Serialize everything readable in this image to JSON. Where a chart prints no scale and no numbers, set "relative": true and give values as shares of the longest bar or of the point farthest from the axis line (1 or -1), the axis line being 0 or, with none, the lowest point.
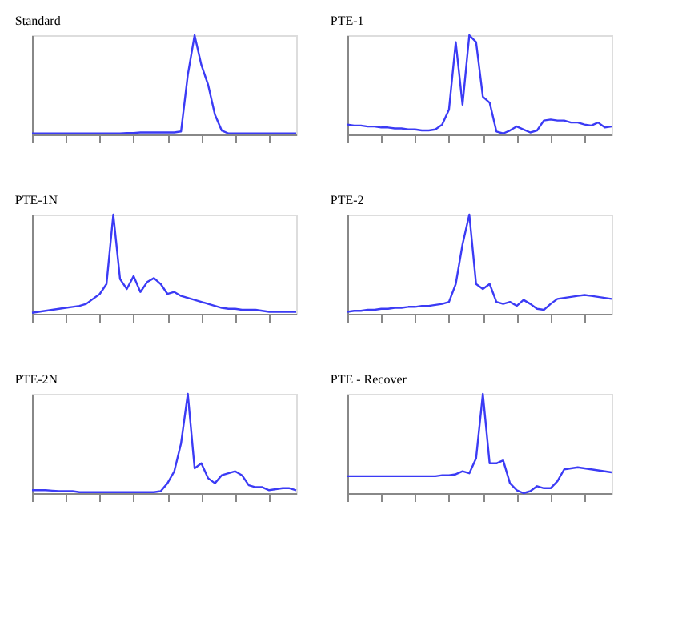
{
  "chart_data": [
    {
      "type": "line",
      "title": "Standard",
      "relative": true,
      "tick_labels": false,
      "grid": false,
      "categories": [
        null,
        null,
        null,
        null,
        null,
        null,
        null,
        null,
        null,
        null,
        null,
        null,
        null,
        null,
        null,
        null,
        null,
        null,
        null,
        null,
        null,
        null,
        null,
        null,
        null,
        null,
        null,
        null,
        null,
        null,
        null,
        null,
        null,
        null,
        null,
        null,
        null,
        null,
        null,
        null
      ],
      "series": [
        {
          "color": "#3b3bf5",
          "values": [
            0.01,
            0.01,
            0.01,
            0.01,
            0.01,
            0.01,
            0.01,
            0.01,
            0.01,
            0.01,
            0.01,
            0.01,
            0.01,
            0.01,
            0.015,
            0.015,
            0.02,
            0.02,
            0.02,
            0.02,
            0.02,
            0.02,
            0.03,
            0.6,
            1.0,
            0.7,
            0.5,
            0.2,
            0.04,
            0.01,
            0.01,
            0.01,
            0.01,
            0.01,
            0.01,
            0.01,
            0.01,
            0.01,
            0.01,
            0.01
          ]
        }
      ]
    },
    {
      "type": "line",
      "title": "PTE-1",
      "relative": true,
      "tick_labels": false,
      "grid": false,
      "categories": [
        null,
        null,
        null,
        null,
        null,
        null,
        null,
        null,
        null,
        null,
        null,
        null,
        null,
        null,
        null,
        null,
        null,
        null,
        null,
        null,
        null,
        null,
        null,
        null,
        null,
        null,
        null,
        null,
        null,
        null,
        null,
        null,
        null,
        null,
        null,
        null,
        null,
        null,
        null,
        null
      ],
      "series": [
        {
          "color": "#3b3bf5",
          "values": [
            0.1,
            0.09,
            0.09,
            0.08,
            0.08,
            0.07,
            0.07,
            0.06,
            0.06,
            0.05,
            0.05,
            0.04,
            0.04,
            0.05,
            0.1,
            0.25,
            0.93,
            0.3,
            1.0,
            0.93,
            0.38,
            0.32,
            0.03,
            0.01,
            0.04,
            0.08,
            0.05,
            0.02,
            0.04,
            0.14,
            0.15,
            0.14,
            0.14,
            0.12,
            0.12,
            0.1,
            0.09,
            0.12,
            0.07,
            0.08
          ]
        }
      ]
    },
    {
      "type": "line",
      "title": "PTE-1N",
      "relative": true,
      "tick_labels": false,
      "grid": false,
      "categories": [
        null,
        null,
        null,
        null,
        null,
        null,
        null,
        null,
        null,
        null,
        null,
        null,
        null,
        null,
        null,
        null,
        null,
        null,
        null,
        null,
        null,
        null,
        null,
        null,
        null,
        null,
        null,
        null,
        null,
        null,
        null,
        null,
        null,
        null,
        null,
        null,
        null,
        null,
        null,
        null
      ],
      "series": [
        {
          "color": "#3b3bf5",
          "values": [
            0.01,
            0.02,
            0.03,
            0.04,
            0.05,
            0.06,
            0.07,
            0.08,
            0.1,
            0.15,
            0.2,
            0.3,
            1.0,
            0.35,
            0.25,
            0.38,
            0.22,
            0.32,
            0.36,
            0.3,
            0.2,
            0.22,
            0.18,
            0.16,
            0.14,
            0.12,
            0.1,
            0.08,
            0.06,
            0.05,
            0.05,
            0.04,
            0.04,
            0.04,
            0.03,
            0.02,
            0.02,
            0.02,
            0.02,
            0.02
          ]
        }
      ]
    },
    {
      "type": "line",
      "title": "PTE-2",
      "relative": true,
      "tick_labels": false,
      "grid": false,
      "categories": [
        null,
        null,
        null,
        null,
        null,
        null,
        null,
        null,
        null,
        null,
        null,
        null,
        null,
        null,
        null,
        null,
        null,
        null,
        null,
        null,
        null,
        null,
        null,
        null,
        null,
        null,
        null,
        null,
        null,
        null,
        null,
        null,
        null,
        null,
        null,
        null,
        null,
        null,
        null,
        null
      ],
      "series": [
        {
          "color": "#3b3bf5",
          "values": [
            0.02,
            0.03,
            0.03,
            0.04,
            0.04,
            0.05,
            0.05,
            0.06,
            0.06,
            0.07,
            0.07,
            0.08,
            0.08,
            0.09,
            0.1,
            0.12,
            0.3,
            0.7,
            1.0,
            0.3,
            0.25,
            0.3,
            0.12,
            0.1,
            0.12,
            0.08,
            0.14,
            0.1,
            0.05,
            0.04,
            0.1,
            0.15,
            0.16,
            0.17,
            0.18,
            0.19,
            0.18,
            0.17,
            0.16,
            0.15
          ]
        }
      ]
    },
    {
      "type": "line",
      "title": "PTE-2N",
      "relative": true,
      "tick_labels": false,
      "grid": false,
      "categories": [
        null,
        null,
        null,
        null,
        null,
        null,
        null,
        null,
        null,
        null,
        null,
        null,
        null,
        null,
        null,
        null,
        null,
        null,
        null,
        null,
        null,
        null,
        null,
        null,
        null,
        null,
        null,
        null,
        null,
        null,
        null,
        null,
        null,
        null,
        null,
        null,
        null,
        null,
        null,
        null
      ],
      "series": [
        {
          "color": "#3b3bf5",
          "values": [
            0.03,
            0.03,
            0.03,
            0.025,
            0.02,
            0.02,
            0.02,
            0.01,
            0.01,
            0.01,
            0.01,
            0.01,
            0.01,
            0.01,
            0.01,
            0.01,
            0.01,
            0.01,
            0.01,
            0.02,
            0.1,
            0.22,
            0.5,
            1.0,
            0.25,
            0.3,
            0.15,
            0.1,
            0.18,
            0.2,
            0.22,
            0.18,
            0.08,
            0.06,
            0.06,
            0.03,
            0.04,
            0.05,
            0.05,
            0.03
          ]
        }
      ]
    },
    {
      "type": "line",
      "title": "PTE - Recover",
      "relative": true,
      "tick_labels": false,
      "grid": false,
      "categories": [
        null,
        null,
        null,
        null,
        null,
        null,
        null,
        null,
        null,
        null,
        null,
        null,
        null,
        null,
        null,
        null,
        null,
        null,
        null,
        null,
        null,
        null,
        null,
        null,
        null,
        null,
        null,
        null,
        null,
        null,
        null,
        null,
        null,
        null,
        null,
        null,
        null,
        null,
        null,
        null
      ],
      "series": [
        {
          "color": "#3b3bf5",
          "values": [
            0.17,
            0.17,
            0.17,
            0.17,
            0.17,
            0.17,
            0.17,
            0.17,
            0.17,
            0.17,
            0.17,
            0.17,
            0.17,
            0.17,
            0.18,
            0.18,
            0.19,
            0.22,
            0.2,
            0.35,
            1.0,
            0.3,
            0.3,
            0.33,
            0.1,
            0.03,
            0.0,
            0.02,
            0.07,
            0.05,
            0.05,
            0.12,
            0.24,
            0.25,
            0.26,
            0.25,
            0.24,
            0.23,
            0.22,
            0.21
          ]
        }
      ]
    }
  ]
}
